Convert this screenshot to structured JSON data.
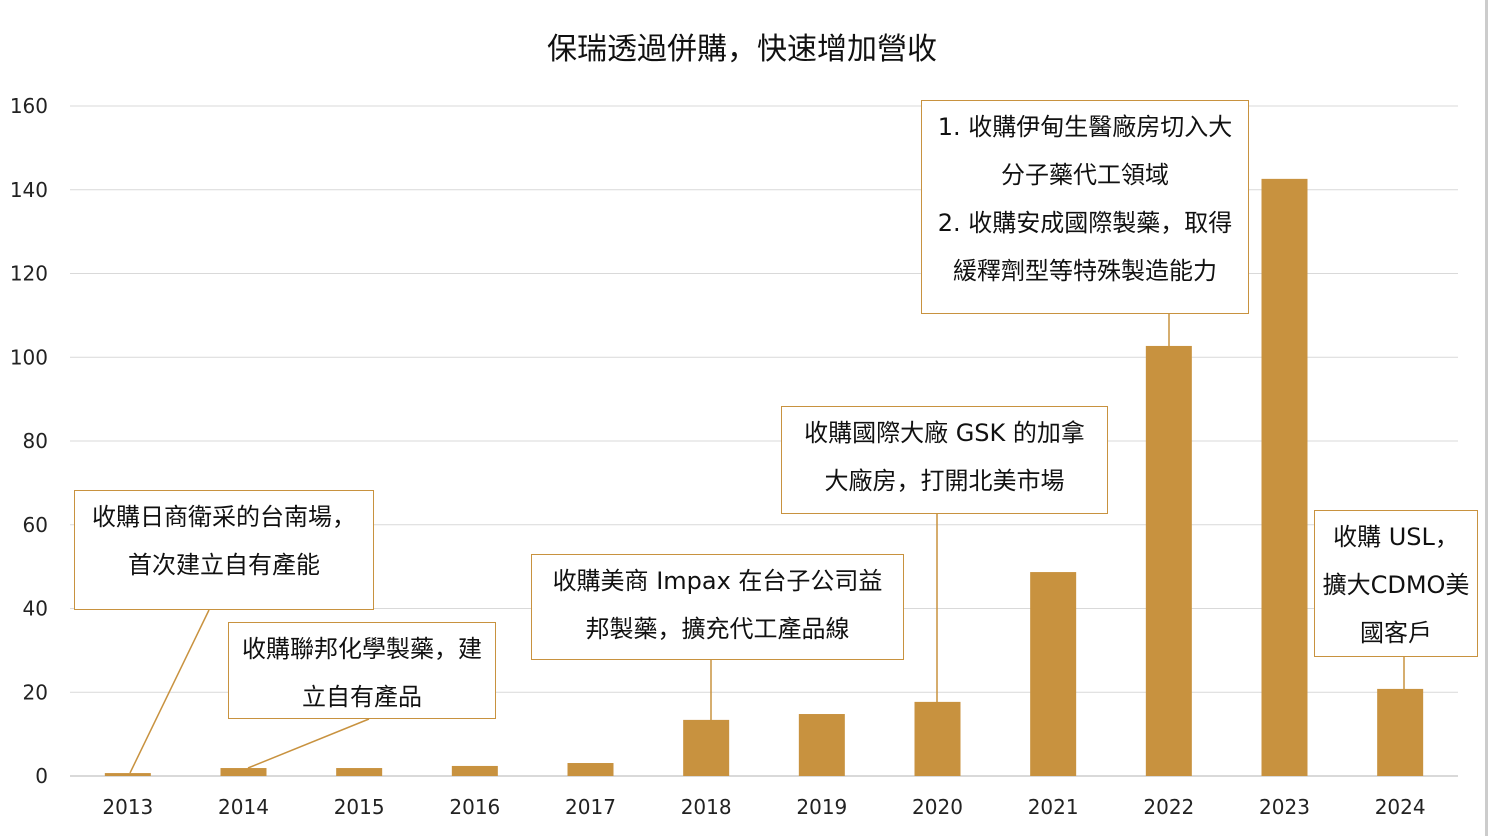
{
  "chart_data": {
    "type": "bar",
    "title": "保瑞透過併購，快速增加營收",
    "categories": [
      "2013",
      "2014",
      "2015",
      "2016",
      "2017",
      "2018",
      "2019",
      "2020",
      "2021",
      "2022",
      "2023",
      "2024"
    ],
    "values": [
      0.7,
      1.9,
      1.9,
      2.4,
      3.1,
      13.4,
      14.8,
      17.7,
      48.7,
      102.7,
      142.6,
      20.8
    ],
    "ylim": [
      0,
      160
    ],
    "yticks": [
      0,
      20,
      40,
      60,
      80,
      100,
      120,
      140,
      160
    ],
    "grid": true,
    "bar_color": "#C8923F",
    "annotations": [
      {
        "year": "2013",
        "lines": [
          "收購日商衛采的台南場，",
          "首次建立自有產能"
        ]
      },
      {
        "year": "2014",
        "lines": [
          "收購聯邦化學製藥，建",
          "立自有產品"
        ]
      },
      {
        "year": "2018",
        "lines": [
          "收購美商 Impax 在台子公司益",
          "邦製藥，擴充代工產品線"
        ]
      },
      {
        "year": "2020",
        "lines": [
          "收購國際大廠 GSK 的加拿",
          "大廠房，打開北美市場"
        ]
      },
      {
        "year": "2022",
        "lines": [
          "1. 收購伊甸生醫廠房切入大",
          "分子藥代工領域",
          "2. 收購安成國際製藥，取得",
          "緩釋劑型等特殊製造能力"
        ]
      },
      {
        "year": "2024",
        "lines": [
          "收購 USL，",
          "擴大CDMO美",
          "國客戶"
        ]
      }
    ]
  }
}
